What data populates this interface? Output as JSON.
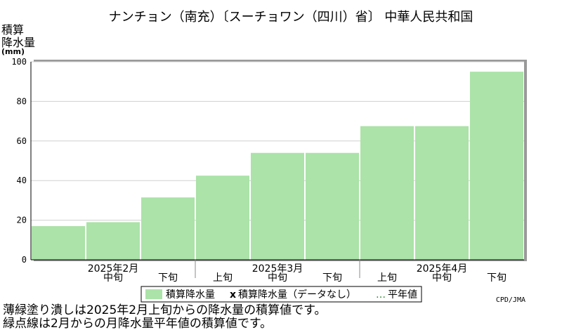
{
  "chart_data": {
    "type": "bar",
    "title": "ナンチョン（南充）〔スーチョワン（四川）省〕 中華人民共和国",
    "ylabel_lines": [
      "積算",
      "降水量"
    ],
    "yunit": "(mm)",
    "ylim": [
      0,
      100
    ],
    "yticks": [
      0,
      20,
      40,
      60,
      80,
      100
    ],
    "categories": [
      "2025年2月上旬",
      "2025年2月中旬",
      "2025年2月下旬",
      "2025年3月上旬",
      "2025年3月中旬",
      "2025年3月下旬",
      "2025年4月上旬",
      "2025年4月中旬",
      "2025年4月下旬"
    ],
    "period_labels": [
      "",
      "中旬",
      "下旬",
      "上旬",
      "中旬",
      "下旬",
      "上旬",
      "中旬",
      "下旬"
    ],
    "month_labels": [
      {
        "label": "2025年2月",
        "index": 1
      },
      {
        "label": "2025年3月",
        "index": 4
      },
      {
        "label": "2025年4月",
        "index": 7
      }
    ],
    "month_boundaries": [
      3,
      6
    ],
    "series": [
      {
        "name": "積算降水量",
        "values": [
          17,
          19,
          31.5,
          42.5,
          54,
          54,
          67.5,
          67.5,
          95
        ],
        "color": "#abe3a8"
      }
    ],
    "legend": {
      "items": [
        {
          "symbol": "",
          "label": "積算降水量"
        },
        {
          "symbol": "x",
          "label": "積算降水量（データなし）"
        },
        {
          "symbol": "…",
          "label": "平年値"
        }
      ],
      "placement": "bottom"
    },
    "grid": true
  },
  "credit": "CPD/JMA",
  "notes": [
    "薄緑塗り潰しは2025年2月上旬からの降水量の積算値です。",
    "緑点線は2月からの月降水量平年値の積算値です。"
  ]
}
